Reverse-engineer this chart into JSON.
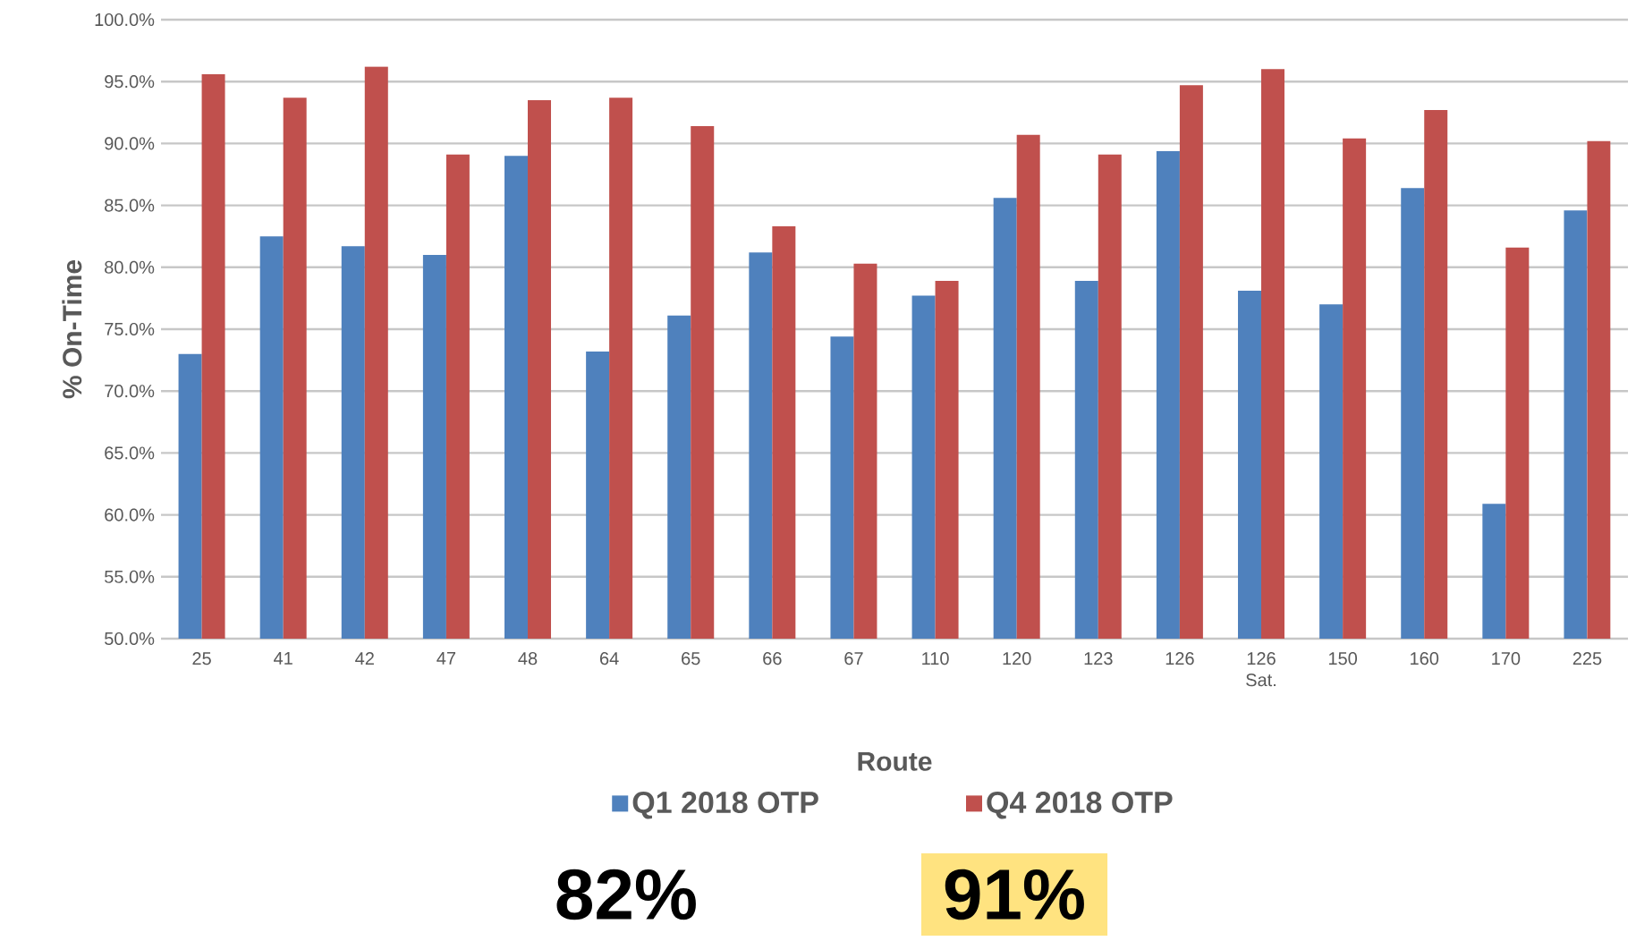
{
  "chart_data": {
    "type": "bar",
    "xlabel": "Route",
    "ylabel": "% On-Time",
    "categories": [
      "25",
      "41",
      "42",
      "47",
      "48",
      "64",
      "65",
      "66",
      "67",
      "110",
      "120",
      "123",
      "126",
      "126 Sat.",
      "150",
      "160",
      "170",
      "225"
    ],
    "series": [
      {
        "name": "Q1 2018 OTP",
        "color": "#4f81bd",
        "values": [
          73.0,
          82.5,
          81.7,
          81.0,
          89.0,
          73.2,
          76.1,
          81.2,
          74.4,
          77.7,
          85.6,
          78.9,
          89.4,
          78.1,
          77.0,
          86.4,
          60.9,
          84.6
        ]
      },
      {
        "name": "Q4 2018 OTP",
        "color": "#c0504d",
        "values": [
          95.6,
          93.7,
          96.2,
          89.1,
          93.5,
          93.7,
          91.4,
          83.3,
          80.3,
          78.9,
          90.7,
          89.1,
          94.7,
          96.0,
          90.4,
          92.7,
          81.6,
          90.2
        ]
      }
    ],
    "ylim": [
      50,
      100
    ],
    "yticks": [
      {
        "value": 50,
        "label": "50.0%"
      },
      {
        "value": 55,
        "label": "55.0%"
      },
      {
        "value": 60,
        "label": "60.0%"
      },
      {
        "value": 65,
        "label": "65.0%"
      },
      {
        "value": 70,
        "label": "70.0%"
      },
      {
        "value": 75,
        "label": "75.0%"
      },
      {
        "value": 80,
        "label": "80.0%"
      },
      {
        "value": 85,
        "label": "85.0%"
      },
      {
        "value": 90,
        "label": "90.0%"
      },
      {
        "value": 95,
        "label": "95.0%"
      },
      {
        "value": 100,
        "label": "100.0%"
      }
    ],
    "grid": "y",
    "legend": "bottom",
    "annotations": [
      "82%",
      "91%"
    ]
  }
}
